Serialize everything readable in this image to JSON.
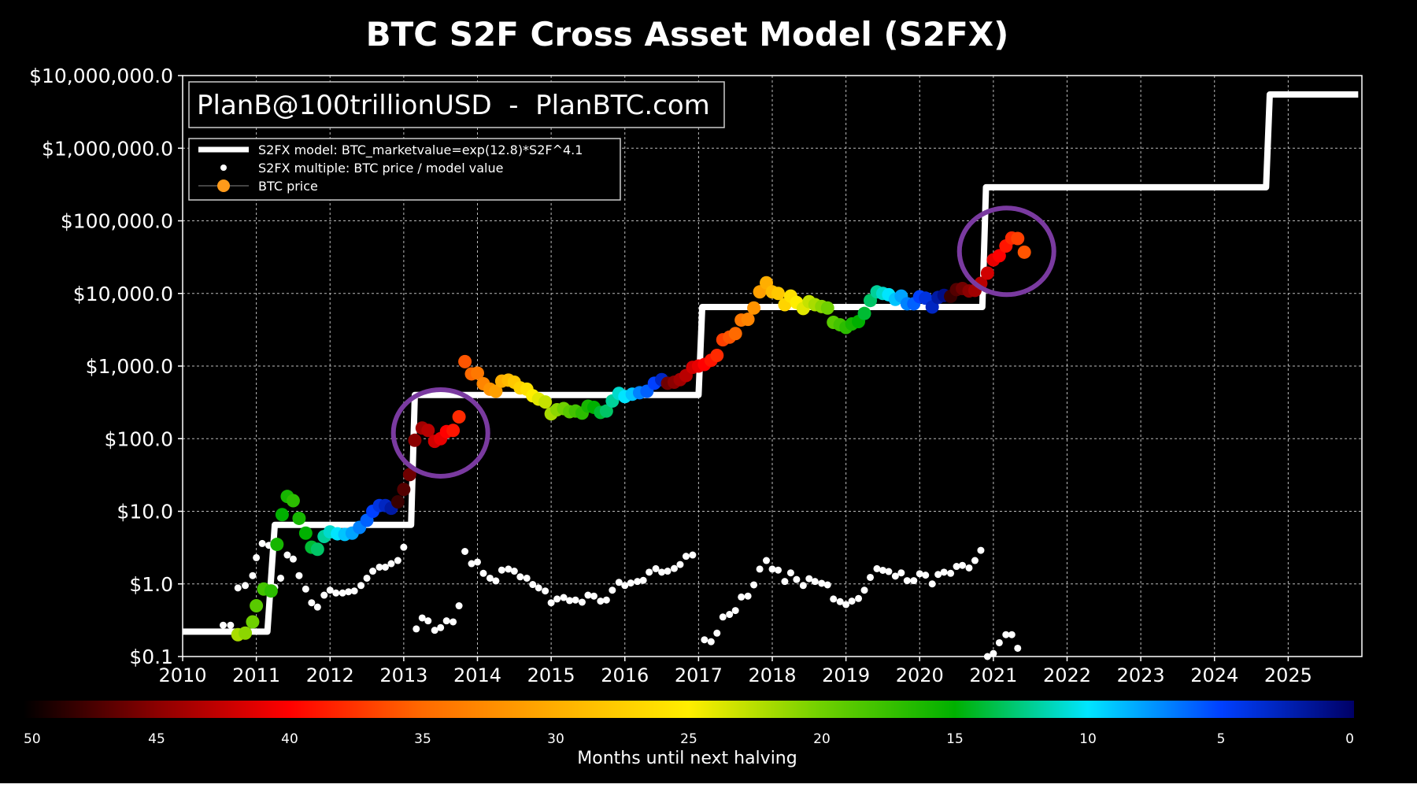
{
  "chart_data": {
    "type": "scatter",
    "title": "BTC S2F Cross Asset Model (S2FX)",
    "watermark": "PlanB@100trillionUSD  -  PlanBTC.com",
    "y_scale": "log",
    "ylim": [
      0.1,
      10000000
    ],
    "xlim": [
      2010,
      2026
    ],
    "grid": true,
    "legend_placement": "top-left",
    "x_ticks": [
      "2010",
      "2011",
      "2012",
      "2013",
      "2014",
      "2015",
      "2016",
      "2017",
      "2018",
      "2019",
      "2020",
      "2021",
      "2022",
      "2023",
      "2024",
      "2025"
    ],
    "y_ticks": [
      {
        "value": 0.1,
        "label": "$0.1"
      },
      {
        "value": 1,
        "label": "$1.0"
      },
      {
        "value": 10,
        "label": "$10.0"
      },
      {
        "value": 100,
        "label": "$100.0"
      },
      {
        "value": 1000,
        "label": "$1,000.0"
      },
      {
        "value": 10000,
        "label": "$10,000.0"
      },
      {
        "value": 100000,
        "label": "$100,000.0"
      },
      {
        "value": 1000000,
        "label": "$1,000,000.0"
      },
      {
        "value": 10000000,
        "label": "$10,000,000.0"
      }
    ],
    "legend": [
      {
        "label": "S2FX model: BTC_marketvalue=exp(12.8)*S2F^4.1",
        "kind": "line"
      },
      {
        "label": "S2FX multiple: BTC price / model value",
        "kind": "dot"
      },
      {
        "label": "BTC price",
        "kind": "orange-dot"
      }
    ],
    "colorbar": {
      "label": "Months until next halving",
      "ticks": [
        "50",
        "45",
        "40",
        "35",
        "30",
        "25",
        "20",
        "15",
        "10",
        "5",
        "0"
      ],
      "range": [
        50,
        0
      ]
    },
    "model_steps": [
      {
        "x_start": 2010.0,
        "x_end": 2011.15,
        "value": 0.22
      },
      {
        "x_start": 2011.25,
        "x_end": 2013.1,
        "value": 6.5
      },
      {
        "x_start": 2013.15,
        "x_end": 2017.0,
        "value": 400
      },
      {
        "x_start": 2017.05,
        "x_end": 2020.85,
        "value": 6500
      },
      {
        "x_start": 2020.9,
        "x_end": 2024.7,
        "value": 290000
      },
      {
        "x_start": 2024.75,
        "x_end": 2025.95,
        "value": 5500000
      }
    ],
    "btc_price": [
      {
        "x": 2010.75,
        "y": 0.2,
        "months": 22
      },
      {
        "x": 2010.85,
        "y": 0.21,
        "months": 21
      },
      {
        "x": 2010.95,
        "y": 0.3,
        "months": 20
      },
      {
        "x": 2011.0,
        "y": 0.5,
        "months": 19
      },
      {
        "x": 2011.1,
        "y": 0.85,
        "months": 18
      },
      {
        "x": 2011.2,
        "y": 0.8,
        "months": 17
      },
      {
        "x": 2011.28,
        "y": 3.5,
        "months": 16
      },
      {
        "x": 2011.35,
        "y": 9,
        "months": 15
      },
      {
        "x": 2011.42,
        "y": 16,
        "months": 16
      },
      {
        "x": 2011.5,
        "y": 14,
        "months": 17
      },
      {
        "x": 2011.58,
        "y": 8,
        "months": 16
      },
      {
        "x": 2011.67,
        "y": 5,
        "months": 15
      },
      {
        "x": 2011.75,
        "y": 3.2,
        "months": 14
      },
      {
        "x": 2011.83,
        "y": 3,
        "months": 13
      },
      {
        "x": 2011.92,
        "y": 4.5,
        "months": 12
      },
      {
        "x": 2012.0,
        "y": 5.2,
        "months": 11
      },
      {
        "x": 2012.1,
        "y": 4.9,
        "months": 10
      },
      {
        "x": 2012.2,
        "y": 4.8,
        "months": 9
      },
      {
        "x": 2012.3,
        "y": 5,
        "months": 8
      },
      {
        "x": 2012.4,
        "y": 6,
        "months": 7
      },
      {
        "x": 2012.5,
        "y": 7.5,
        "months": 6
      },
      {
        "x": 2012.58,
        "y": 10,
        "months": 5
      },
      {
        "x": 2012.67,
        "y": 12,
        "months": 4
      },
      {
        "x": 2012.75,
        "y": 12,
        "months": 3
      },
      {
        "x": 2012.83,
        "y": 11,
        "months": 2
      },
      {
        "x": 2012.92,
        "y": 13.5,
        "months": 48
      },
      {
        "x": 2013.0,
        "y": 20,
        "months": 47
      },
      {
        "x": 2013.08,
        "y": 32,
        "months": 46
      },
      {
        "x": 2013.15,
        "y": 95,
        "months": 45
      },
      {
        "x": 2013.25,
        "y": 140,
        "months": 44
      },
      {
        "x": 2013.33,
        "y": 130,
        "months": 43
      },
      {
        "x": 2013.42,
        "y": 92,
        "months": 42
      },
      {
        "x": 2013.5,
        "y": 100,
        "months": 41
      },
      {
        "x": 2013.58,
        "y": 125,
        "months": 40
      },
      {
        "x": 2013.67,
        "y": 130,
        "months": 39
      },
      {
        "x": 2013.75,
        "y": 200,
        "months": 38
      },
      {
        "x": 2013.83,
        "y": 1150,
        "months": 36
      },
      {
        "x": 2013.92,
        "y": 780,
        "months": 35
      },
      {
        "x": 2014.0,
        "y": 800,
        "months": 34
      },
      {
        "x": 2014.08,
        "y": 570,
        "months": 33
      },
      {
        "x": 2014.17,
        "y": 480,
        "months": 32
      },
      {
        "x": 2014.25,
        "y": 450,
        "months": 31
      },
      {
        "x": 2014.33,
        "y": 620,
        "months": 30
      },
      {
        "x": 2014.42,
        "y": 640,
        "months": 29
      },
      {
        "x": 2014.5,
        "y": 600,
        "months": 28
      },
      {
        "x": 2014.58,
        "y": 500,
        "months": 27
      },
      {
        "x": 2014.67,
        "y": 480,
        "months": 26
      },
      {
        "x": 2014.75,
        "y": 390,
        "months": 25
      },
      {
        "x": 2014.83,
        "y": 350,
        "months": 24
      },
      {
        "x": 2014.92,
        "y": 320,
        "months": 23
      },
      {
        "x": 2015.0,
        "y": 220,
        "months": 22
      },
      {
        "x": 2015.08,
        "y": 250,
        "months": 21
      },
      {
        "x": 2015.17,
        "y": 260,
        "months": 20
      },
      {
        "x": 2015.25,
        "y": 235,
        "months": 19
      },
      {
        "x": 2015.33,
        "y": 240,
        "months": 18
      },
      {
        "x": 2015.42,
        "y": 225,
        "months": 17
      },
      {
        "x": 2015.5,
        "y": 280,
        "months": 16
      },
      {
        "x": 2015.58,
        "y": 270,
        "months": 15
      },
      {
        "x": 2015.67,
        "y": 230,
        "months": 14
      },
      {
        "x": 2015.75,
        "y": 240,
        "months": 13
      },
      {
        "x": 2015.83,
        "y": 330,
        "months": 12
      },
      {
        "x": 2015.92,
        "y": 420,
        "months": 11
      },
      {
        "x": 2016.0,
        "y": 380,
        "months": 10
      },
      {
        "x": 2016.1,
        "y": 410,
        "months": 9
      },
      {
        "x": 2016.2,
        "y": 430,
        "months": 7
      },
      {
        "x": 2016.3,
        "y": 450,
        "months": 6
      },
      {
        "x": 2016.4,
        "y": 580,
        "months": 5
      },
      {
        "x": 2016.5,
        "y": 650,
        "months": 3
      },
      {
        "x": 2016.58,
        "y": 580,
        "months": 46
      },
      {
        "x": 2016.67,
        "y": 600,
        "months": 45
      },
      {
        "x": 2016.75,
        "y": 650,
        "months": 44
      },
      {
        "x": 2016.83,
        "y": 740,
        "months": 43
      },
      {
        "x": 2016.92,
        "y": 960,
        "months": 42
      },
      {
        "x": 2017.0,
        "y": 1000,
        "months": 41
      },
      {
        "x": 2017.08,
        "y": 1050,
        "months": 40
      },
      {
        "x": 2017.17,
        "y": 1200,
        "months": 39
      },
      {
        "x": 2017.25,
        "y": 1400,
        "months": 38
      },
      {
        "x": 2017.33,
        "y": 2300,
        "months": 37
      },
      {
        "x": 2017.42,
        "y": 2500,
        "months": 36
      },
      {
        "x": 2017.5,
        "y": 2800,
        "months": 35
      },
      {
        "x": 2017.58,
        "y": 4300,
        "months": 34
      },
      {
        "x": 2017.67,
        "y": 4400,
        "months": 33
      },
      {
        "x": 2017.75,
        "y": 6300,
        "months": 32
      },
      {
        "x": 2017.83,
        "y": 10500,
        "months": 31
      },
      {
        "x": 2017.92,
        "y": 14000,
        "months": 30
      },
      {
        "x": 2018.0,
        "y": 10500,
        "months": 29
      },
      {
        "x": 2018.08,
        "y": 10000,
        "months": 28
      },
      {
        "x": 2018.17,
        "y": 7000,
        "months": 27
      },
      {
        "x": 2018.25,
        "y": 9200,
        "months": 26
      },
      {
        "x": 2018.33,
        "y": 7500,
        "months": 25
      },
      {
        "x": 2018.42,
        "y": 6200,
        "months": 24
      },
      {
        "x": 2018.5,
        "y": 7700,
        "months": 23
      },
      {
        "x": 2018.58,
        "y": 7000,
        "months": 22
      },
      {
        "x": 2018.67,
        "y": 6600,
        "months": 21
      },
      {
        "x": 2018.75,
        "y": 6300,
        "months": 20
      },
      {
        "x": 2018.83,
        "y": 4000,
        "months": 19
      },
      {
        "x": 2018.92,
        "y": 3700,
        "months": 18
      },
      {
        "x": 2019.0,
        "y": 3400,
        "months": 17
      },
      {
        "x": 2019.08,
        "y": 3800,
        "months": 16
      },
      {
        "x": 2019.17,
        "y": 4100,
        "months": 15
      },
      {
        "x": 2019.25,
        "y": 5300,
        "months": 14
      },
      {
        "x": 2019.33,
        "y": 8000,
        "months": 13
      },
      {
        "x": 2019.42,
        "y": 10500,
        "months": 12
      },
      {
        "x": 2019.5,
        "y": 10000,
        "months": 11
      },
      {
        "x": 2019.58,
        "y": 9600,
        "months": 10
      },
      {
        "x": 2019.67,
        "y": 8300,
        "months": 9
      },
      {
        "x": 2019.75,
        "y": 9200,
        "months": 8
      },
      {
        "x": 2019.83,
        "y": 7200,
        "months": 7
      },
      {
        "x": 2019.92,
        "y": 7200,
        "months": 6
      },
      {
        "x": 2020.0,
        "y": 9000,
        "months": 5
      },
      {
        "x": 2020.08,
        "y": 8600,
        "months": 4
      },
      {
        "x": 2020.17,
        "y": 6500,
        "months": 3
      },
      {
        "x": 2020.25,
        "y": 8800,
        "months": 2
      },
      {
        "x": 2020.33,
        "y": 9400,
        "months": 1
      },
      {
        "x": 2020.42,
        "y": 9100,
        "months": 48
      },
      {
        "x": 2020.5,
        "y": 11300,
        "months": 47
      },
      {
        "x": 2020.58,
        "y": 11700,
        "months": 46
      },
      {
        "x": 2020.67,
        "y": 10800,
        "months": 45
      },
      {
        "x": 2020.75,
        "y": 11000,
        "months": 44
      },
      {
        "x": 2020.83,
        "y": 13800,
        "months": 43
      },
      {
        "x": 2020.92,
        "y": 19000,
        "months": 42
      },
      {
        "x": 2021.0,
        "y": 29000,
        "months": 41
      },
      {
        "x": 2021.08,
        "y": 33000,
        "months": 40
      },
      {
        "x": 2021.17,
        "y": 45000,
        "months": 39
      },
      {
        "x": 2021.25,
        "y": 58000,
        "months": 38
      },
      {
        "x": 2021.33,
        "y": 57000,
        "months": 37
      },
      {
        "x": 2021.42,
        "y": 37000,
        "months": 36
      }
    ],
    "s2fx_multiple": [
      {
        "x": 2010.55,
        "y": 0.27
      },
      {
        "x": 2010.65,
        "y": 0.27
      },
      {
        "x": 2010.75,
        "y": 0.88
      },
      {
        "x": 2010.85,
        "y": 0.95
      },
      {
        "x": 2010.95,
        "y": 1.3
      },
      {
        "x": 2011.0,
        "y": 2.3
      },
      {
        "x": 2011.08,
        "y": 3.6
      },
      {
        "x": 2011.17,
        "y": 3.4
      },
      {
        "x": 2011.25,
        "y": 0.9
      },
      {
        "x": 2011.33,
        "y": 1.2
      },
      {
        "x": 2011.42,
        "y": 2.5
      },
      {
        "x": 2011.5,
        "y": 2.2
      },
      {
        "x": 2011.58,
        "y": 1.3
      },
      {
        "x": 2011.67,
        "y": 0.85
      },
      {
        "x": 2011.75,
        "y": 0.55
      },
      {
        "x": 2011.83,
        "y": 0.48
      },
      {
        "x": 2011.92,
        "y": 0.7
      },
      {
        "x": 2012.0,
        "y": 0.82
      },
      {
        "x": 2012.08,
        "y": 0.75
      },
      {
        "x": 2012.17,
        "y": 0.75
      },
      {
        "x": 2012.25,
        "y": 0.78
      },
      {
        "x": 2012.33,
        "y": 0.8
      },
      {
        "x": 2012.42,
        "y": 0.95
      },
      {
        "x": 2012.5,
        "y": 1.2
      },
      {
        "x": 2012.58,
        "y": 1.5
      },
      {
        "x": 2012.67,
        "y": 1.7
      },
      {
        "x": 2012.75,
        "y": 1.7
      },
      {
        "x": 2012.83,
        "y": 1.9
      },
      {
        "x": 2012.92,
        "y": 2.1
      },
      {
        "x": 2013.0,
        "y": 3.2
      },
      {
        "x": 2013.17,
        "y": 0.24
      },
      {
        "x": 2013.25,
        "y": 0.34
      },
      {
        "x": 2013.33,
        "y": 0.31
      },
      {
        "x": 2013.42,
        "y": 0.23
      },
      {
        "x": 2013.5,
        "y": 0.25
      },
      {
        "x": 2013.58,
        "y": 0.31
      },
      {
        "x": 2013.67,
        "y": 0.3
      },
      {
        "x": 2013.75,
        "y": 0.5
      },
      {
        "x": 2013.83,
        "y": 2.8
      },
      {
        "x": 2013.92,
        "y": 1.9
      },
      {
        "x": 2014.0,
        "y": 2.0
      },
      {
        "x": 2014.08,
        "y": 1.4
      },
      {
        "x": 2014.17,
        "y": 1.2
      },
      {
        "x": 2014.25,
        "y": 1.1
      },
      {
        "x": 2014.33,
        "y": 1.55
      },
      {
        "x": 2014.42,
        "y": 1.6
      },
      {
        "x": 2014.5,
        "y": 1.5
      },
      {
        "x": 2014.58,
        "y": 1.25
      },
      {
        "x": 2014.67,
        "y": 1.2
      },
      {
        "x": 2014.75,
        "y": 0.98
      },
      {
        "x": 2014.83,
        "y": 0.88
      },
      {
        "x": 2014.92,
        "y": 0.8
      },
      {
        "x": 2015.0,
        "y": 0.55
      },
      {
        "x": 2015.08,
        "y": 0.62
      },
      {
        "x": 2015.17,
        "y": 0.65
      },
      {
        "x": 2015.25,
        "y": 0.59
      },
      {
        "x": 2015.33,
        "y": 0.6
      },
      {
        "x": 2015.42,
        "y": 0.56
      },
      {
        "x": 2015.5,
        "y": 0.7
      },
      {
        "x": 2015.58,
        "y": 0.68
      },
      {
        "x": 2015.67,
        "y": 0.58
      },
      {
        "x": 2015.75,
        "y": 0.6
      },
      {
        "x": 2015.83,
        "y": 0.82
      },
      {
        "x": 2015.92,
        "y": 1.05
      },
      {
        "x": 2016.0,
        "y": 0.95
      },
      {
        "x": 2016.08,
        "y": 1.03
      },
      {
        "x": 2016.17,
        "y": 1.08
      },
      {
        "x": 2016.25,
        "y": 1.12
      },
      {
        "x": 2016.33,
        "y": 1.45
      },
      {
        "x": 2016.42,
        "y": 1.62
      },
      {
        "x": 2016.5,
        "y": 1.45
      },
      {
        "x": 2016.58,
        "y": 1.5
      },
      {
        "x": 2016.67,
        "y": 1.63
      },
      {
        "x": 2016.75,
        "y": 1.85
      },
      {
        "x": 2016.83,
        "y": 2.4
      },
      {
        "x": 2016.92,
        "y": 2.5
      },
      {
        "x": 2017.08,
        "y": 0.17
      },
      {
        "x": 2017.17,
        "y": 0.16
      },
      {
        "x": 2017.25,
        "y": 0.21
      },
      {
        "x": 2017.33,
        "y": 0.35
      },
      {
        "x": 2017.42,
        "y": 0.38
      },
      {
        "x": 2017.5,
        "y": 0.43
      },
      {
        "x": 2017.58,
        "y": 0.66
      },
      {
        "x": 2017.67,
        "y": 0.68
      },
      {
        "x": 2017.75,
        "y": 0.97
      },
      {
        "x": 2017.83,
        "y": 1.6
      },
      {
        "x": 2017.92,
        "y": 2.1
      },
      {
        "x": 2018.0,
        "y": 1.6
      },
      {
        "x": 2018.08,
        "y": 1.55
      },
      {
        "x": 2018.17,
        "y": 1.08
      },
      {
        "x": 2018.25,
        "y": 1.42
      },
      {
        "x": 2018.33,
        "y": 1.15
      },
      {
        "x": 2018.42,
        "y": 0.95
      },
      {
        "x": 2018.5,
        "y": 1.18
      },
      {
        "x": 2018.58,
        "y": 1.08
      },
      {
        "x": 2018.67,
        "y": 1.02
      },
      {
        "x": 2018.75,
        "y": 0.97
      },
      {
        "x": 2018.83,
        "y": 0.62
      },
      {
        "x": 2018.92,
        "y": 0.57
      },
      {
        "x": 2019.0,
        "y": 0.52
      },
      {
        "x": 2019.08,
        "y": 0.58
      },
      {
        "x": 2019.17,
        "y": 0.63
      },
      {
        "x": 2019.25,
        "y": 0.82
      },
      {
        "x": 2019.33,
        "y": 1.23
      },
      {
        "x": 2019.42,
        "y": 1.62
      },
      {
        "x": 2019.5,
        "y": 1.54
      },
      {
        "x": 2019.58,
        "y": 1.48
      },
      {
        "x": 2019.67,
        "y": 1.28
      },
      {
        "x": 2019.75,
        "y": 1.42
      },
      {
        "x": 2019.83,
        "y": 1.11
      },
      {
        "x": 2019.92,
        "y": 1.11
      },
      {
        "x": 2020.0,
        "y": 1.38
      },
      {
        "x": 2020.08,
        "y": 1.32
      },
      {
        "x": 2020.17,
        "y": 1.0
      },
      {
        "x": 2020.25,
        "y": 1.35
      },
      {
        "x": 2020.33,
        "y": 1.45
      },
      {
        "x": 2020.42,
        "y": 1.4
      },
      {
        "x": 2020.5,
        "y": 1.74
      },
      {
        "x": 2020.58,
        "y": 1.8
      },
      {
        "x": 2020.67,
        "y": 1.66
      },
      {
        "x": 2020.75,
        "y": 2.1
      },
      {
        "x": 2020.83,
        "y": 2.9
      },
      {
        "x": 2020.92,
        "y": 0.1
      },
      {
        "x": 2021.0,
        "y": 0.11
      },
      {
        "x": 2021.08,
        "y": 0.155
      },
      {
        "x": 2021.17,
        "y": 0.2
      },
      {
        "x": 2021.25,
        "y": 0.2
      },
      {
        "x": 2021.33,
        "y": 0.13
      }
    ],
    "highlight_circles": [
      {
        "x": 2013.5,
        "y": 120
      },
      {
        "x": 2021.18,
        "y": 38000
      }
    ]
  }
}
